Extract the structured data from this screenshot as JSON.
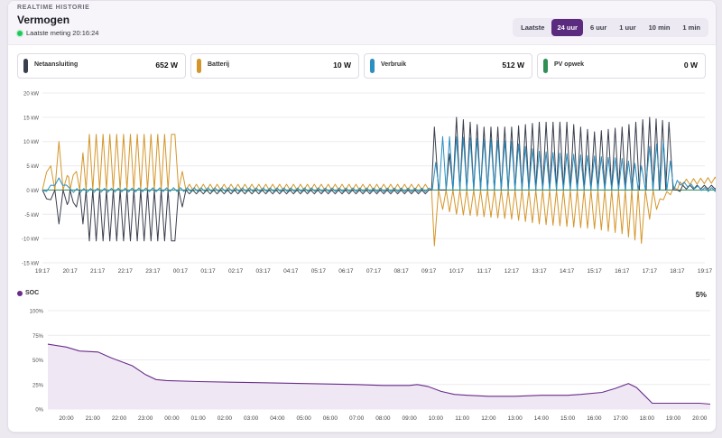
{
  "header": {
    "eyebrow": "REALTIME HISTORIE",
    "title": "Vermogen",
    "last_measurement": "Laatste meting 20:16:24"
  },
  "range": {
    "label": "Laatste",
    "options": [
      "24 uur",
      "6 uur",
      "1 uur",
      "10 min",
      "1 min"
    ],
    "selected": "24 uur"
  },
  "stats": [
    {
      "label": "Netaansluiting",
      "value": "652 W",
      "color": "#3a3f4d"
    },
    {
      "label": "Batterij",
      "value": "10 W",
      "color": "#d4962a"
    },
    {
      "label": "Verbruik",
      "value": "512 W",
      "color": "#2b8fc0"
    },
    {
      "label": "PV opwek",
      "value": "0 W",
      "color": "#2f8f55"
    }
  ],
  "soc": {
    "label": "SOC",
    "value": "5%",
    "color": "#6a2c8a"
  },
  "chart_data": [
    {
      "type": "line",
      "title": "",
      "x_ticks": [
        "19:17",
        "20:17",
        "21:17",
        "22:17",
        "23:17",
        "00:17",
        "01:17",
        "02:17",
        "03:17",
        "04:17",
        "05:17",
        "06:17",
        "07:17",
        "08:17",
        "09:17",
        "10:17",
        "11:17",
        "12:17",
        "13:17",
        "14:17",
        "15:17",
        "16:17",
        "17:17",
        "18:17",
        "19:17"
      ],
      "y_ticks": [
        "20 kW",
        "15 kW",
        "10 kW",
        "5 kW",
        "0 kW",
        "-5 kW",
        "-10 kW",
        "-15 kW"
      ],
      "ylim": [
        -15,
        20
      ],
      "y_unit": "kW",
      "grid": true,
      "series": [
        {
          "name": "Netaansluiting",
          "color": "#3a3f4d",
          "points": [
            [
              0.0,
              0
            ],
            [
              0.3,
              -2
            ],
            [
              0.6,
              -7
            ],
            [
              0.9,
              -3
            ],
            [
              1.0,
              0
            ],
            [
              1.7,
              -10.5
            ],
            [
              4.8,
              -10.5
            ],
            [
              5.2,
              0
            ],
            [
              14.0,
              0
            ],
            [
              14.2,
              13
            ],
            [
              14.5,
              0
            ],
            [
              15.0,
              15
            ],
            [
              15.5,
              14
            ],
            [
              16.0,
              13
            ],
            [
              17.0,
              13
            ],
            [
              18.0,
              14
            ],
            [
              19.0,
              14
            ],
            [
              20.0,
              12
            ],
            [
              21.0,
              13
            ],
            [
              22.0,
              15
            ],
            [
              22.7,
              14
            ],
            [
              23.0,
              0
            ],
            [
              23.2,
              1
            ],
            [
              24.5,
              1
            ],
            [
              25.0,
              0.5
            ]
          ]
        },
        {
          "name": "Batterij",
          "color": "#d4962a",
          "points": [
            [
              0.0,
              0
            ],
            [
              0.3,
              5
            ],
            [
              0.6,
              10
            ],
            [
              0.9,
              3
            ],
            [
              1.0,
              0
            ],
            [
              1.7,
              11.5
            ],
            [
              4.8,
              11.5
            ],
            [
              5.2,
              0
            ],
            [
              14.0,
              0
            ],
            [
              14.2,
              -11.5
            ],
            [
              14.5,
              -4
            ],
            [
              15.0,
              -5
            ],
            [
              16.0,
              -5.5
            ],
            [
              17.0,
              -6
            ],
            [
              18.0,
              -7
            ],
            [
              19.0,
              -7.5
            ],
            [
              20.0,
              -8
            ],
            [
              21.0,
              -9
            ],
            [
              21.7,
              -11
            ],
            [
              22.0,
              -6
            ],
            [
              22.5,
              -2
            ],
            [
              23.0,
              0
            ],
            [
              23.2,
              1
            ],
            [
              24.5,
              1.5
            ],
            [
              25.0,
              0
            ]
          ]
        },
        {
          "name": "Verbruik",
          "color": "#2b8fc0",
          "points": [
            [
              0.0,
              0
            ],
            [
              0.3,
              1
            ],
            [
              0.6,
              2.5
            ],
            [
              1.0,
              0.3
            ],
            [
              5.0,
              0.5
            ],
            [
              14.0,
              0.4
            ],
            [
              14.5,
              11
            ],
            [
              15.0,
              11
            ],
            [
              16.0,
              10.5
            ],
            [
              17.0,
              10
            ],
            [
              18.0,
              8
            ],
            [
              19.0,
              7.5
            ],
            [
              20.0,
              7
            ],
            [
              21.0,
              6.5
            ],
            [
              21.7,
              5
            ],
            [
              22.0,
              9
            ],
            [
              22.5,
              10
            ],
            [
              23.0,
              2
            ],
            [
              24.0,
              0.5
            ],
            [
              25.0,
              0.5
            ]
          ]
        },
        {
          "name": "PV opwek",
          "color": "#2f8f55",
          "points": [
            [
              0,
              0
            ],
            [
              25,
              0
            ]
          ]
        }
      ]
    },
    {
      "type": "area",
      "title": "SOC",
      "x_ticks": [
        "20:00",
        "21:00",
        "22:00",
        "23:00",
        "00:00",
        "01:00",
        "02:00",
        "03:00",
        "04:00",
        "05:00",
        "06:00",
        "07:00",
        "08:00",
        "09:00",
        "10:00",
        "11:00",
        "12:00",
        "13:00",
        "14:00",
        "15:00",
        "16:00",
        "17:00",
        "18:00",
        "19:00",
        "20:00"
      ],
      "y_ticks": [
        "100%",
        "75%",
        "50%",
        "25%",
        "0%"
      ],
      "ylim": [
        0,
        100
      ],
      "y_unit": "%",
      "series": [
        {
          "name": "SOC",
          "color": "#6a2c8a",
          "points": [
            [
              -0.7,
              66
            ],
            [
              0,
              63
            ],
            [
              0.5,
              59
            ],
            [
              1.2,
              58
            ],
            [
              1.7,
              52
            ],
            [
              2.5,
              44
            ],
            [
              3.0,
              35
            ],
            [
              3.4,
              30
            ],
            [
              3.8,
              29
            ],
            [
              5,
              28
            ],
            [
              7,
              27
            ],
            [
              9,
              26
            ],
            [
              11,
              25
            ],
            [
              12,
              24
            ],
            [
              13,
              24
            ],
            [
              13.3,
              25
            ],
            [
              13.7,
              23
            ],
            [
              14.2,
              18
            ],
            [
              14.7,
              15
            ],
            [
              15.2,
              14
            ],
            [
              16,
              13
            ],
            [
              17,
              13
            ],
            [
              18,
              14
            ],
            [
              19,
              14
            ],
            [
              19.5,
              15
            ],
            [
              20.3,
              17
            ],
            [
              20.8,
              21
            ],
            [
              21.3,
              26
            ],
            [
              21.6,
              22
            ],
            [
              21.9,
              14
            ],
            [
              22.2,
              6
            ],
            [
              23,
              6
            ],
            [
              24,
              6
            ],
            [
              24.4,
              5
            ]
          ]
        }
      ]
    }
  ]
}
